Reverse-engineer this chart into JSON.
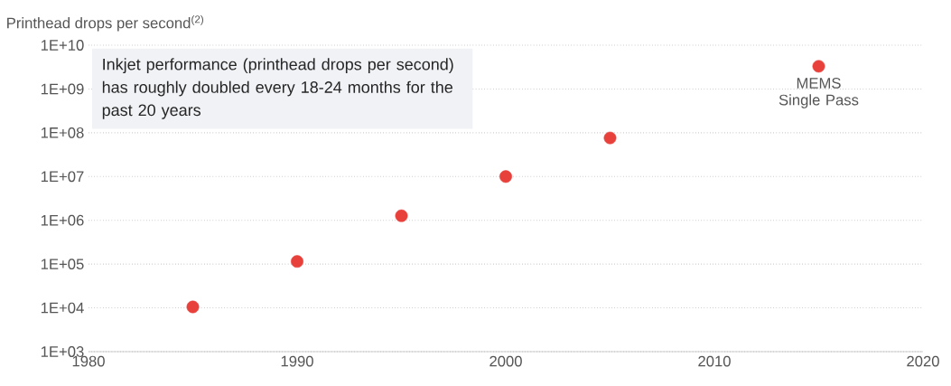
{
  "chart_data": {
    "type": "scatter",
    "ylabel": "Printhead drops per second$^{(2)}$",
    "x": [
      1985,
      1990,
      1995,
      2000,
      2005,
      2015
    ],
    "values": [
      10500.0,
      115000.0,
      1270000.0,
      10000000.0,
      76000000.0,
      3300000000.0
    ],
    "color": "#e8413c",
    "log": "y",
    "grid": "y",
    "xlim": [
      1980,
      2020
    ],
    "xticks": [
      1980,
      1990,
      2000,
      2010,
      2020
    ],
    "ylim": [
      1000,
      10000000000
    ],
    "yticks": [
      {
        "value": 1000,
        "label": "1E+03"
      },
      {
        "value": 10000,
        "label": "1E+04"
      },
      {
        "value": 100000,
        "label": "1E+05"
      },
      {
        "value": 1000000,
        "label": "1E+06"
      },
      {
        "value": 10000000,
        "label": "1E+07"
      },
      {
        "value": 100000000,
        "label": "1E+08"
      },
      {
        "value": 1000000000,
        "label": "1E+09"
      },
      {
        "value": 10000000000,
        "label": "1E+10"
      }
    ],
    "annotations": [
      "Inkjet performance (printhead drops per second) has roughly doubled every 18-24 months for the past 20 years",
      {
        "text": "MEMS Single Pass",
        "x": 2015,
        "y": 3300000000.0
      }
    ]
  }
}
